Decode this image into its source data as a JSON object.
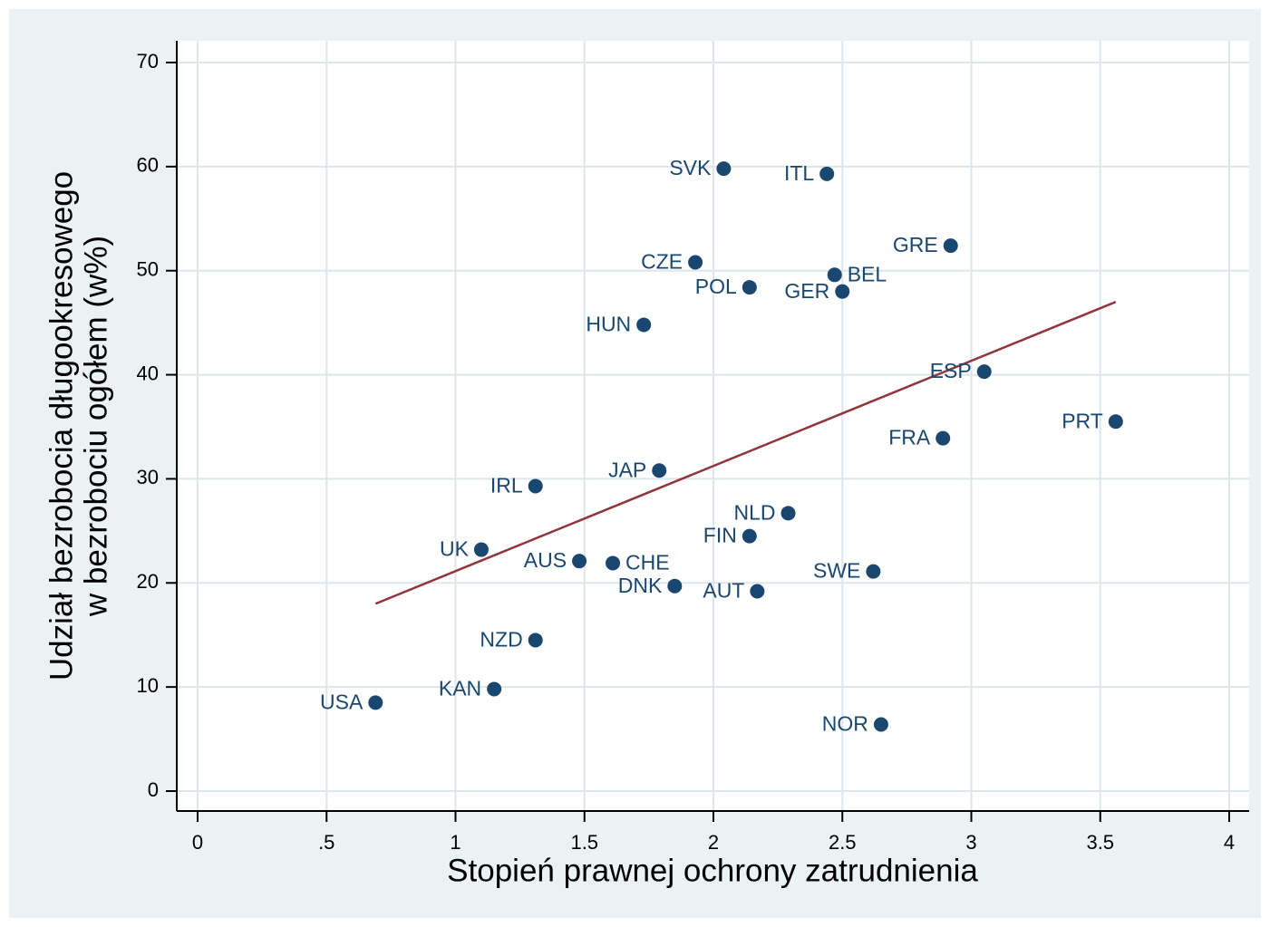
{
  "chart_data": {
    "type": "scatter",
    "x_label": "Stopień prawnej ochrony zatrudnienia",
    "y_label": [
      "Udział bezrobocia długookresowego",
      "w bezrobociu ogółem (w%)"
    ],
    "labels": [
      "SVK",
      "ITL",
      "GRE",
      "CZE",
      "BEL",
      "POL",
      "GER",
      "HUN",
      "ESP",
      "PRT",
      "FRA",
      "JAP",
      "IRL",
      "NLD",
      "FIN",
      "UK",
      "AUS",
      "CHE",
      "SWE",
      "DNK",
      "AUT",
      "NZD",
      "KAN",
      "USA",
      "NOR"
    ],
    "x": [
      2.04,
      2.44,
      2.92,
      1.93,
      2.47,
      2.14,
      2.5,
      1.73,
      3.05,
      3.56,
      2.89,
      1.79,
      1.31,
      2.29,
      2.14,
      1.1,
      1.48,
      1.61,
      2.62,
      1.85,
      2.17,
      1.31,
      1.15,
      0.69,
      2.65
    ],
    "values": [
      59.8,
      59.3,
      52.4,
      50.8,
      49.6,
      48.4,
      48.0,
      44.8,
      40.3,
      35.5,
      33.9,
      30.8,
      29.3,
      26.7,
      24.5,
      23.2,
      22.1,
      21.9,
      21.1,
      19.7,
      19.2,
      14.5,
      9.8,
      8.5,
      6.4
    ],
    "color": "#1a476f",
    "fit_line": {
      "x": [
        0.69,
        3.56
      ],
      "values": [
        18.0,
        47.0
      ],
      "color": "#90353b"
    },
    "xlim": [
      0,
      4
    ],
    "xticks": [
      0,
      {
        "value": 0.5,
        "label": ".5"
      },
      1,
      1.5,
      2,
      2.5,
      3,
      3.5,
      4
    ],
    "ylim": [
      0,
      70
    ],
    "yticks": [
      0,
      10,
      20,
      30,
      40,
      50,
      60,
      70
    ],
    "grid": true
  }
}
